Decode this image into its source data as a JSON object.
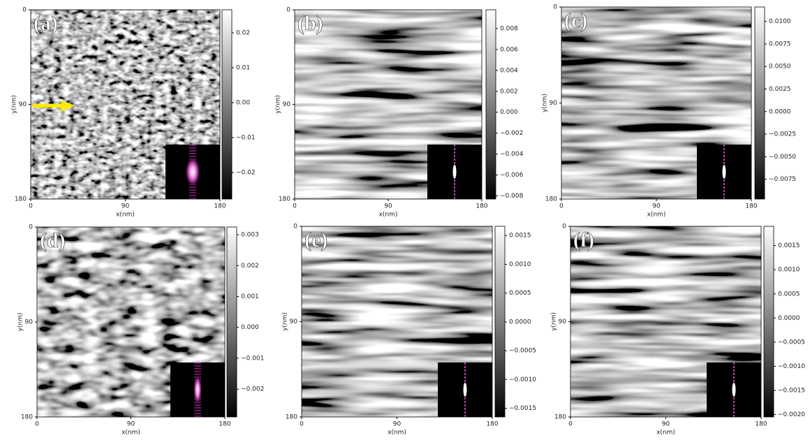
{
  "chart_data": [
    {
      "type": "image",
      "label": "(a)",
      "xlabel": "x(nm)",
      "ylabel": "y(nm)",
      "texture": "isotropic-fine",
      "colormap": "gray",
      "xlim": [
        0,
        180
      ],
      "ylim": [
        0,
        180
      ],
      "y_inverted": true,
      "xticks": [
        0,
        90,
        180
      ],
      "yticks": [
        0,
        90,
        180
      ],
      "clim": [
        -0.0276,
        0.0266
      ],
      "cticks": [
        0.02,
        0.01,
        {
          "value": 0,
          "label": "0.00"
        },
        {
          "value": -0.01,
          "label": "−0.01"
        },
        {
          "value": -0.02,
          "label": "−0.02"
        }
      ]
    },
    {
      "type": "image",
      "label": "(b)",
      "xlabel": "x(nm)",
      "ylabel": "y(nm)",
      "texture": "horizontal-stripes",
      "colormap": "gray",
      "xlim": [
        0,
        180
      ],
      "ylim": [
        0,
        180
      ],
      "y_inverted": true,
      "xticks": [
        0,
        90,
        180
      ],
      "yticks": [
        0,
        90,
        180
      ],
      "clim": [
        -0.0083,
        0.0098
      ],
      "cticks": [
        0.008,
        0.006,
        0.004,
        0.002,
        {
          "value": 0,
          "label": "0.000"
        },
        {
          "value": -0.002,
          "label": "−0.002"
        },
        {
          "value": -0.004,
          "label": "−0.004"
        },
        {
          "value": -0.006,
          "label": "−0.006"
        },
        {
          "value": -0.008,
          "label": "−0.008"
        }
      ]
    },
    {
      "type": "image",
      "label": "(c)",
      "xlabel": "x(nm)",
      "ylabel": "y(nm)",
      "texture": "horizontal-stripes",
      "colormap": "gray",
      "xlim": [
        0,
        180
      ],
      "ylim": [
        0,
        180
      ],
      "y_inverted": true,
      "xticks": [
        0,
        90,
        180
      ],
      "yticks": [
        0,
        90,
        180
      ],
      "clim": [
        -0.0097,
        0.0116
      ],
      "cticks": [
        {
          "value": 0.01,
          "label": "0.0100"
        },
        0.0075,
        {
          "value": 0.005,
          "label": "0.0050"
        },
        0.0025,
        {
          "value": 0,
          "label": "0.0000"
        },
        {
          "value": -0.0025,
          "label": "−0.0025"
        },
        {
          "value": -0.005,
          "label": "−0.0050"
        },
        {
          "value": -0.0075,
          "label": "−0.0075"
        }
      ]
    },
    {
      "type": "image",
      "label": "(d)",
      "xlabel": "x(nm)",
      "ylabel": "y(nm)",
      "texture": "blobs",
      "colormap": "gray",
      "xlim": [
        0,
        180
      ],
      "ylim": [
        0,
        180
      ],
      "y_inverted": true,
      "xticks": [
        0,
        90,
        180
      ],
      "yticks": [
        0,
        90,
        180
      ],
      "clim": [
        -0.0029,
        0.00325
      ],
      "cticks": [
        0.003,
        0.002,
        0.001,
        {
          "value": 0,
          "label": "0.000"
        },
        {
          "value": -0.001,
          "label": "−0.001"
        },
        {
          "value": -0.002,
          "label": "−0.002"
        }
      ]
    },
    {
      "type": "image",
      "label": "(e)",
      "xlabel": "x(nm)",
      "ylabel": "y(nm)",
      "texture": "horizontal-stripes",
      "colormap": "gray",
      "xlim": [
        0,
        180
      ],
      "ylim": [
        0,
        180
      ],
      "y_inverted": true,
      "xticks": [
        0,
        90,
        180
      ],
      "yticks": [
        0,
        90,
        180
      ],
      "clim": [
        -0.00165,
        0.00166
      ],
      "cticks": [
        0.0015,
        {
          "value": 0.001,
          "label": "0.0010"
        },
        0.0005,
        {
          "value": 0,
          "label": "0.0000"
        },
        {
          "value": -0.0005,
          "label": "−0.0005"
        },
        {
          "value": -0.001,
          "label": "−0.0010"
        },
        {
          "value": -0.0015,
          "label": "−0.0015"
        }
      ]
    },
    {
      "type": "image",
      "label": "(f)",
      "xlabel": "x(nm)",
      "ylabel": "y(nm)",
      "texture": "horizontal-stripes",
      "colormap": "gray",
      "xlim": [
        0,
        180
      ],
      "ylim": [
        0,
        180
      ],
      "y_inverted": true,
      "xticks": [
        0,
        90,
        180
      ],
      "yticks": [
        0,
        90,
        180
      ],
      "clim": [
        -0.00205,
        0.0019
      ],
      "cticks": [
        0.0015,
        {
          "value": 0.001,
          "label": "0.0010"
        },
        0.0005,
        {
          "value": 0,
          "label": "0.0000"
        },
        {
          "value": -0.0005,
          "label": "−0.0005"
        },
        {
          "value": -0.001,
          "label": "−0.0010"
        },
        {
          "value": -0.0015,
          "label": "−0.0015"
        },
        {
          "value": -0.002,
          "label": "−0.0020"
        }
      ]
    }
  ]
}
